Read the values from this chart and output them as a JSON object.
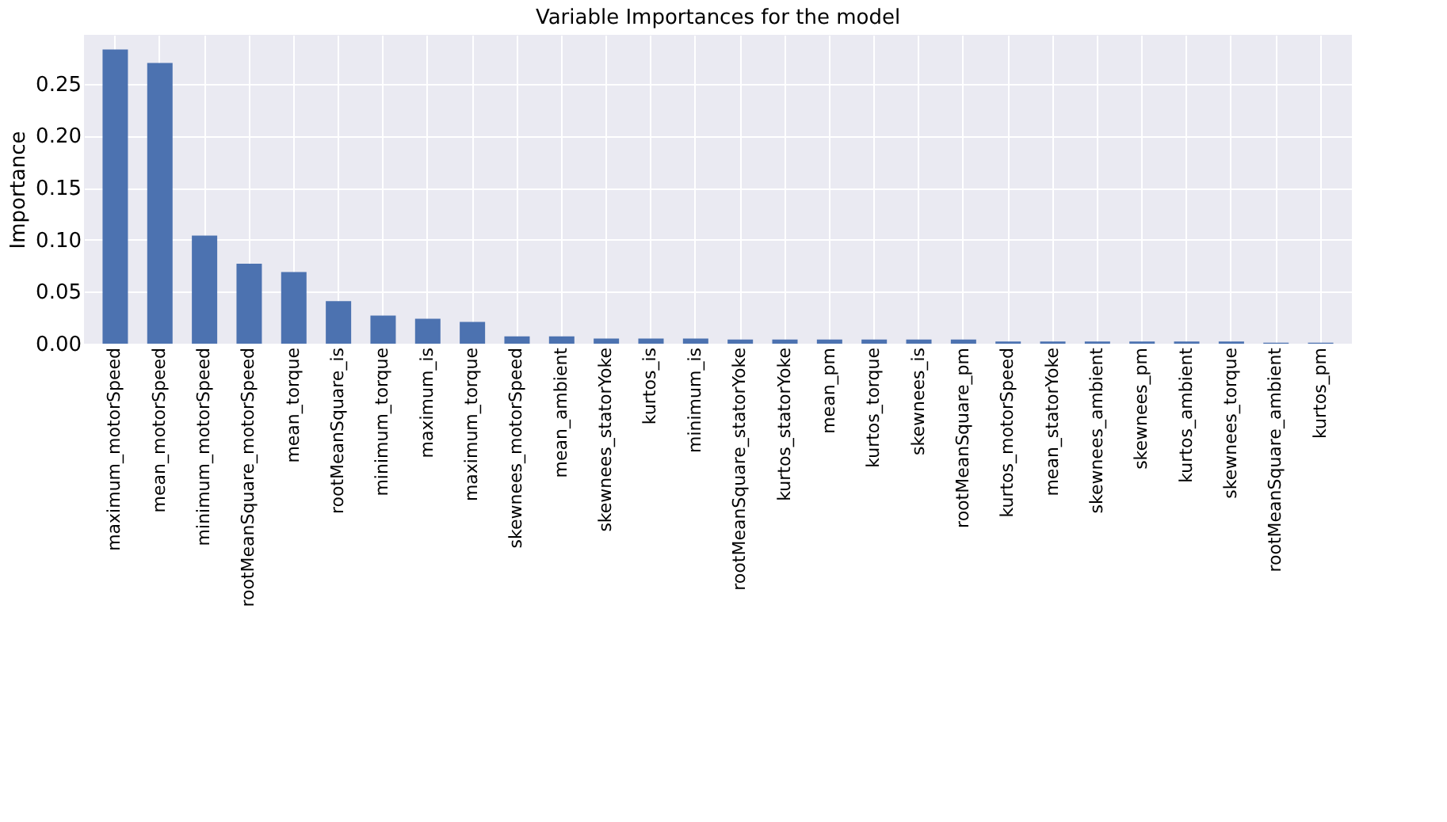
{
  "chart_data": {
    "type": "bar",
    "title": "Variable Importances for the model",
    "ylabel": "Importance",
    "categories": [
      "maximum_motorSpeed",
      "mean_motorSpeed",
      "minimum_motorSpeed",
      "rootMeanSquare_motorSpeed",
      "mean_torque",
      "rootMeanSquare_is",
      "minimum_torque",
      "maximum_is",
      "maximum_torque",
      "skewnees_motorSpeed",
      "mean_ambient",
      "skewnees_statorYoke",
      "kurtos_is",
      "minimum_is",
      "rootMeanSquare_statorYoke",
      "kurtos_statorYoke",
      "mean_pm",
      "kurtos_torque",
      "skewnees_is",
      "rootMeanSquare_pm",
      "kurtos_motorSpeed",
      "mean_statorYoke",
      "skewnees_ambient",
      "skewnees_pm",
      "kurtos_ambient",
      "skewnees_torque",
      "rootMeanSquare_ambient",
      "kurtos_pm"
    ],
    "values": [
      0.283,
      0.27,
      0.104,
      0.077,
      0.069,
      0.041,
      0.027,
      0.024,
      0.021,
      0.007,
      0.007,
      0.005,
      0.005,
      0.005,
      0.004,
      0.004,
      0.004,
      0.004,
      0.004,
      0.004,
      0.002,
      0.002,
      0.002,
      0.002,
      0.002,
      0.002,
      0.001,
      0.001
    ],
    "color": "#4c72b0",
    "ylim": [
      0,
      0.297
    ],
    "yticks": [
      {
        "value": 0,
        "label": "0.00"
      },
      0.05,
      {
        "value": 0.1,
        "label": "0.10"
      },
      0.15,
      {
        "value": 0.2,
        "label": "0.20"
      },
      0.25
    ],
    "grid": true
  }
}
